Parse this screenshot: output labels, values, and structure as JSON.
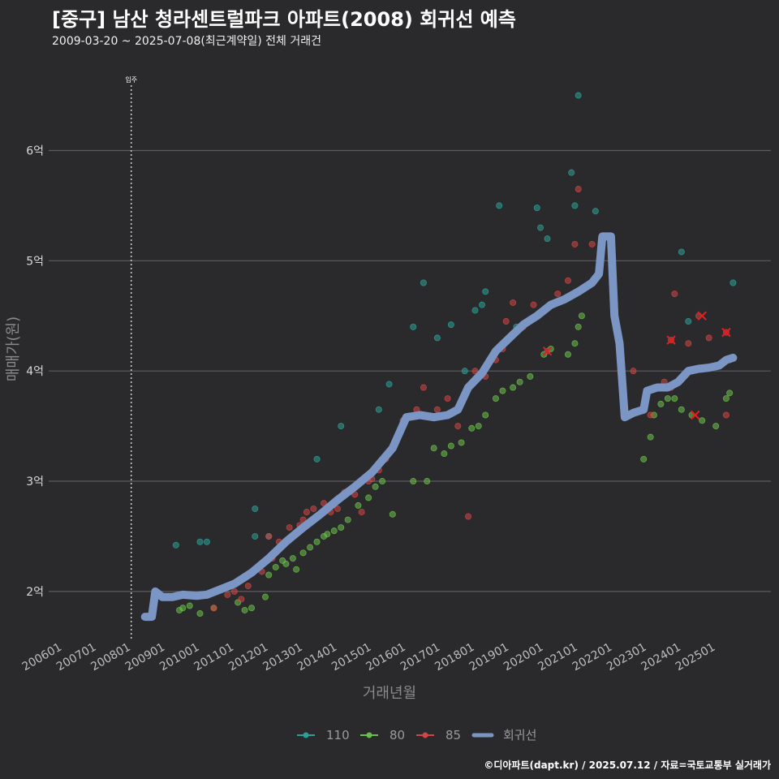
{
  "header": {
    "title": "[중구] 남산 청라센트럴파크 아파트(2008) 회귀선 예측",
    "subtitle": "2009-03-20 ~ 2025-07-08(최근계약일) 전체 거래건"
  },
  "caption": "©디아파트(dapt.kr) / 2025.07.12 / 자료=국토교통부 실거래가",
  "chart_data": {
    "type": "scatter",
    "title": "[중구] 남산 청라센트럴파크 아파트(2008) 회귀선 예측",
    "subtitle": "2009-03-20 ~ 2025-07-08(최근계약일) 전체 거래건",
    "xlabel": "거래년월",
    "ylabel": "매매가(원)",
    "xlim": [
      2005.6,
      2026.6
    ],
    "ylim": [
      1.55,
      6.85
    ],
    "y_ticks": [
      {
        "value": 2,
        "label": "2억"
      },
      {
        "value": 3,
        "label": "3억"
      },
      {
        "value": 4,
        "label": "4억"
      },
      {
        "value": 5,
        "label": "5억"
      },
      {
        "value": 6,
        "label": "6억"
      }
    ],
    "x_ticks": [
      {
        "value": 2006.0,
        "label": "200601"
      },
      {
        "value": 2007.0,
        "label": "200701"
      },
      {
        "value": 2008.0,
        "label": "200801"
      },
      {
        "value": 2009.0,
        "label": "200901"
      },
      {
        "value": 2010.0,
        "label": "201001"
      },
      {
        "value": 2011.0,
        "label": "201101"
      },
      {
        "value": 2012.0,
        "label": "201201"
      },
      {
        "value": 2013.0,
        "label": "201301"
      },
      {
        "value": 2014.0,
        "label": "201401"
      },
      {
        "value": 2015.0,
        "label": "201501"
      },
      {
        "value": 2016.0,
        "label": "201601"
      },
      {
        "value": 2017.0,
        "label": "201701"
      },
      {
        "value": 2018.0,
        "label": "201801"
      },
      {
        "value": 2019.0,
        "label": "201901"
      },
      {
        "value": 2020.0,
        "label": "202001"
      },
      {
        "value": 2021.0,
        "label": "202101"
      },
      {
        "value": 2022.0,
        "label": "202201"
      },
      {
        "value": 2023.0,
        "label": "202301"
      },
      {
        "value": 2024.0,
        "label": "202401"
      },
      {
        "value": 2025.0,
        "label": "202501"
      }
    ],
    "move_in": {
      "x": 2008.0,
      "label": "입주"
    },
    "legend": [
      "110",
      "80",
      "85",
      "회귀선"
    ],
    "series": [
      {
        "name": "110",
        "color": "#2aa198",
        "points": [
          [
            2016.5,
            4.8
          ],
          [
            2016.9,
            4.3
          ],
          [
            2017.3,
            4.42
          ],
          [
            2018.0,
            4.55
          ],
          [
            2018.2,
            4.6
          ],
          [
            2018.3,
            4.72
          ],
          [
            2018.7,
            5.5
          ],
          [
            2019.8,
            5.48
          ],
          [
            2019.9,
            5.3
          ],
          [
            2020.1,
            5.2
          ],
          [
            2020.8,
            5.8
          ],
          [
            2020.9,
            5.5
          ],
          [
            2021.0,
            6.5
          ],
          [
            2021.5,
            5.45
          ],
          [
            2024.0,
            5.08
          ],
          [
            2024.2,
            4.45
          ],
          [
            2025.5,
            4.8
          ],
          [
            2015.2,
            3.65
          ],
          [
            2015.5,
            3.88
          ],
          [
            2014.1,
            3.5
          ],
          [
            2013.4,
            3.2
          ],
          [
            2016.2,
            4.4
          ],
          [
            2019.2,
            4.4
          ],
          [
            2017.7,
            4.0
          ],
          [
            2012.0,
            2.5
          ],
          [
            2011.6,
            2.5
          ],
          [
            2011.6,
            2.75
          ],
          [
            2009.3,
            2.42
          ],
          [
            2010.0,
            2.45
          ],
          [
            2010.2,
            2.45
          ]
        ]
      },
      {
        "name": "80",
        "color": "#6abf4b",
        "points": [
          [
            2009.4,
            1.83
          ],
          [
            2009.5,
            1.85
          ],
          [
            2009.7,
            1.87
          ],
          [
            2010.0,
            1.8
          ],
          [
            2010.4,
            1.85
          ],
          [
            2011.1,
            1.9
          ],
          [
            2011.3,
            1.83
          ],
          [
            2011.5,
            1.85
          ],
          [
            2011.9,
            1.95
          ],
          [
            2012.0,
            2.15
          ],
          [
            2012.2,
            2.22
          ],
          [
            2012.5,
            2.25
          ],
          [
            2012.7,
            2.3
          ],
          [
            2012.8,
            2.2
          ],
          [
            2013.0,
            2.35
          ],
          [
            2013.2,
            2.4
          ],
          [
            2013.4,
            2.45
          ],
          [
            2013.6,
            2.5
          ],
          [
            2013.9,
            2.55
          ],
          [
            2014.1,
            2.58
          ],
          [
            2014.3,
            2.65
          ],
          [
            2014.6,
            2.78
          ],
          [
            2014.9,
            2.85
          ],
          [
            2015.1,
            2.95
          ],
          [
            2015.3,
            3.0
          ],
          [
            2015.6,
            2.7
          ],
          [
            2016.2,
            3.0
          ],
          [
            2016.6,
            3.0
          ],
          [
            2016.8,
            3.3
          ],
          [
            2017.1,
            3.25
          ],
          [
            2017.3,
            3.32
          ],
          [
            2017.6,
            3.35
          ],
          [
            2017.9,
            3.48
          ],
          [
            2018.1,
            3.5
          ],
          [
            2018.3,
            3.6
          ],
          [
            2018.6,
            3.75
          ],
          [
            2018.8,
            3.82
          ],
          [
            2019.1,
            3.85
          ],
          [
            2019.3,
            3.9
          ],
          [
            2019.6,
            3.95
          ],
          [
            2020.0,
            4.15
          ],
          [
            2020.2,
            4.2
          ],
          [
            2020.7,
            4.15
          ],
          [
            2020.9,
            4.25
          ],
          [
            2021.0,
            4.4
          ],
          [
            2021.1,
            4.5
          ],
          [
            2023.2,
            3.6
          ],
          [
            2023.4,
            3.7
          ],
          [
            2023.6,
            3.75
          ],
          [
            2023.8,
            3.75
          ],
          [
            2024.0,
            3.65
          ],
          [
            2024.3,
            3.6
          ],
          [
            2024.6,
            3.55
          ],
          [
            2025.0,
            3.5
          ],
          [
            2025.3,
            3.75
          ],
          [
            2025.4,
            3.8
          ],
          [
            2022.9,
            3.2
          ],
          [
            2023.1,
            3.4
          ],
          [
            2012.4,
            2.28
          ],
          [
            2013.7,
            2.52
          ]
        ]
      },
      {
        "name": "85",
        "color": "#d04545",
        "points": [
          [
            2010.1,
            1.97
          ],
          [
            2010.4,
            1.85
          ],
          [
            2010.8,
            1.97
          ],
          [
            2011.0,
            2.0
          ],
          [
            2011.4,
            2.05
          ],
          [
            2011.8,
            2.18
          ],
          [
            2012.1,
            2.3
          ],
          [
            2012.3,
            2.45
          ],
          [
            2012.6,
            2.58
          ],
          [
            2012.9,
            2.6
          ],
          [
            2013.1,
            2.72
          ],
          [
            2013.3,
            2.75
          ],
          [
            2013.6,
            2.8
          ],
          [
            2013.8,
            2.72
          ],
          [
            2014.0,
            2.75
          ],
          [
            2014.2,
            2.9
          ],
          [
            2014.5,
            2.88
          ],
          [
            2014.7,
            2.72
          ],
          [
            2014.9,
            3.0
          ],
          [
            2015.2,
            3.1
          ],
          [
            2015.4,
            3.2
          ],
          [
            2015.9,
            3.55
          ],
          [
            2016.3,
            3.65
          ],
          [
            2016.5,
            3.85
          ],
          [
            2016.9,
            3.65
          ],
          [
            2017.2,
            3.75
          ],
          [
            2017.5,
            3.5
          ],
          [
            2017.8,
            2.68
          ],
          [
            2018.0,
            4.0
          ],
          [
            2018.3,
            3.95
          ],
          [
            2018.6,
            4.1
          ],
          [
            2018.8,
            4.2
          ],
          [
            2018.9,
            4.45
          ],
          [
            2019.1,
            4.62
          ],
          [
            2019.4,
            4.4
          ],
          [
            2019.7,
            4.6
          ],
          [
            2020.1,
            4.18
          ],
          [
            2020.4,
            4.7
          ],
          [
            2020.7,
            4.82
          ],
          [
            2020.9,
            5.15
          ],
          [
            2021.0,
            5.65
          ],
          [
            2021.4,
            5.15
          ],
          [
            2021.7,
            5.15
          ],
          [
            2022.6,
            4.0
          ],
          [
            2023.1,
            3.6
          ],
          [
            2023.2,
            3.85
          ],
          [
            2023.5,
            3.9
          ],
          [
            2023.7,
            3.85
          ],
          [
            2023.7,
            4.28
          ],
          [
            2023.8,
            4.7
          ],
          [
            2024.2,
            4.25
          ],
          [
            2024.5,
            4.5
          ],
          [
            2024.8,
            4.3
          ],
          [
            2025.3,
            4.35
          ],
          [
            2025.4,
            4.1
          ],
          [
            2025.3,
            3.6
          ],
          [
            2011.2,
            1.93
          ],
          [
            2012.0,
            2.5
          ],
          [
            2013.0,
            2.65
          ],
          [
            2015.0,
            3.02
          ]
        ]
      }
    ],
    "highlighted": [
      {
        "x": 2020.1,
        "y": 4.18,
        "series": "80"
      },
      {
        "x": 2023.7,
        "y": 4.28,
        "series": "85"
      },
      {
        "x": 2024.6,
        "y": 4.5,
        "series": "85"
      },
      {
        "x": 2024.4,
        "y": 3.6,
        "series": "80"
      },
      {
        "x": 2025.3,
        "y": 4.35,
        "series": "85"
      }
    ],
    "regression": {
      "name": "회귀선",
      "color": "#7b96c4",
      "points": [
        [
          2008.4,
          1.77
        ],
        [
          2008.6,
          1.77
        ],
        [
          2008.7,
          2.0
        ],
        [
          2008.9,
          1.95
        ],
        [
          2009.2,
          1.95
        ],
        [
          2009.5,
          1.97
        ],
        [
          2009.9,
          1.96
        ],
        [
          2010.2,
          1.97
        ],
        [
          2010.6,
          2.02
        ],
        [
          2011.0,
          2.07
        ],
        [
          2011.5,
          2.17
        ],
        [
          2012.0,
          2.3
        ],
        [
          2012.5,
          2.45
        ],
        [
          2013.0,
          2.58
        ],
        [
          2013.5,
          2.7
        ],
        [
          2014.0,
          2.83
        ],
        [
          2014.5,
          2.95
        ],
        [
          2015.0,
          3.08
        ],
        [
          2015.6,
          3.3
        ],
        [
          2016.0,
          3.58
        ],
        [
          2016.4,
          3.6
        ],
        [
          2016.8,
          3.58
        ],
        [
          2017.2,
          3.6
        ],
        [
          2017.5,
          3.65
        ],
        [
          2017.8,
          3.85
        ],
        [
          2018.2,
          3.98
        ],
        [
          2018.6,
          4.18
        ],
        [
          2019.0,
          4.3
        ],
        [
          2019.4,
          4.42
        ],
        [
          2019.8,
          4.5
        ],
        [
          2020.2,
          4.6
        ],
        [
          2020.6,
          4.65
        ],
        [
          2021.0,
          4.72
        ],
        [
          2021.4,
          4.8
        ],
        [
          2021.6,
          4.88
        ],
        [
          2021.7,
          5.22
        ],
        [
          2021.95,
          5.22
        ],
        [
          2022.05,
          4.5
        ],
        [
          2022.2,
          4.25
        ],
        [
          2022.35,
          3.58
        ],
        [
          2022.6,
          3.62
        ],
        [
          2022.9,
          3.65
        ],
        [
          2023.0,
          3.82
        ],
        [
          2023.3,
          3.85
        ],
        [
          2023.6,
          3.85
        ],
        [
          2023.9,
          3.9
        ],
        [
          2024.2,
          4.0
        ],
        [
          2024.5,
          4.02
        ],
        [
          2024.8,
          4.03
        ],
        [
          2025.1,
          4.05
        ],
        [
          2025.3,
          4.1
        ],
        [
          2025.5,
          4.12
        ]
      ]
    }
  }
}
